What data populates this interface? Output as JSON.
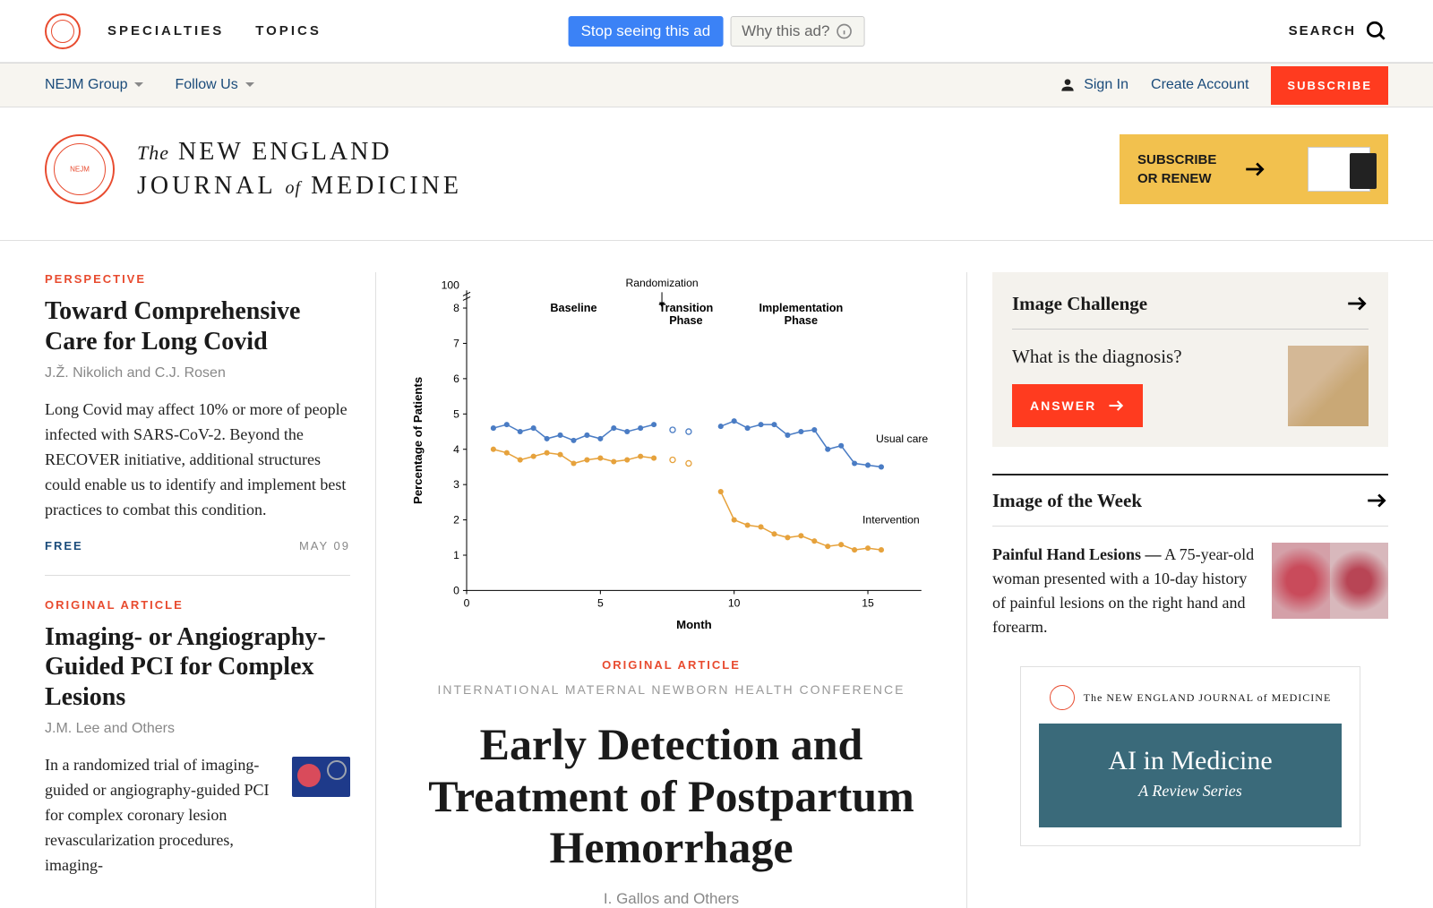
{
  "nav": {
    "specialties": "SPECIALTIES",
    "topics": "TOPICS",
    "search": "SEARCH",
    "stop_ad": "Stop seeing this ad",
    "why_ad": "Why this ad?"
  },
  "secbar": {
    "group": "NEJM Group",
    "follow": "Follow Us",
    "signin": "Sign In",
    "create": "Create Account",
    "subscribe": "SUBSCRIBE"
  },
  "masthead": {
    "the": "The",
    "l1": "NEW ENGLAND",
    "l2a": "JOURNAL",
    "of": "of",
    "l2b": "MEDICINE",
    "renew1": "SUBSCRIBE",
    "renew2": "OR RENEW"
  },
  "left": {
    "a1_kicker": "PERSPECTIVE",
    "a1_title": "Toward Comprehensive Care for Long Covid",
    "a1_auth": "J.Ž. Nikolich and C.J. Rosen",
    "a1_blurb": "Long Covid may affect 10% or more of people infected with SARS-CoV-2. Beyond the RECOVER initiative, additional structures could enable us to identify and implement best practices to combat this condition.",
    "free": "FREE",
    "date": "MAY 09",
    "a2_kicker": "ORIGINAL ARTICLE",
    "a2_title": "Imaging- or Angiography-Guided PCI for Complex Lesions",
    "a2_auth": "J.M. Lee and Others",
    "a2_blurb": "In a randomized trial of imaging-guided or angiography-guided PCI for complex coronary lesion revascularization procedures, imaging-"
  },
  "chart": {
    "type": "line",
    "xlabel": "Month",
    "ylabel": "Percentage of Patients",
    "xlim": [
      0,
      17
    ],
    "ylim": [
      0,
      8.5
    ],
    "xticks": [
      0,
      5,
      10,
      15
    ],
    "yticks": [
      0,
      1,
      2,
      3,
      4,
      5,
      6,
      7,
      8
    ],
    "ytop": 100,
    "phases": [
      {
        "label": "Baseline",
        "x": 4
      },
      {
        "label": "Transition\nPhase",
        "x": 8.2
      },
      {
        "label": "Implementation\nPhase",
        "x": 12.5
      }
    ],
    "rand_label": "Randomization",
    "rand_x": 7.3,
    "series": [
      {
        "name": "Usual care",
        "color": "#4a7cc4",
        "label_x": 15.3,
        "label_y": 4.2,
        "points": [
          [
            1,
            4.6
          ],
          [
            1.5,
            4.7
          ],
          [
            2,
            4.5
          ],
          [
            2.5,
            4.6
          ],
          [
            3,
            4.3
          ],
          [
            3.5,
            4.4
          ],
          [
            4,
            4.25
          ],
          [
            4.5,
            4.4
          ],
          [
            5,
            4.3
          ],
          [
            5.5,
            4.6
          ],
          [
            6,
            4.5
          ],
          [
            6.5,
            4.6
          ],
          [
            7,
            4.7
          ],
          [
            9.5,
            4.65
          ],
          [
            10,
            4.8
          ],
          [
            10.5,
            4.6
          ],
          [
            11,
            4.7
          ],
          [
            11.5,
            4.7
          ],
          [
            12,
            4.4
          ],
          [
            12.5,
            4.5
          ],
          [
            13,
            4.55
          ],
          [
            13.5,
            4.0
          ],
          [
            14,
            4.1
          ],
          [
            14.5,
            3.6
          ],
          [
            15,
            3.55
          ],
          [
            15.5,
            3.5
          ]
        ],
        "gap_pts": [
          [
            7.7,
            4.55
          ],
          [
            8.3,
            4.5
          ]
        ]
      },
      {
        "name": "Intervention",
        "color": "#e6a23c",
        "label_x": 14.8,
        "label_y": 1.9,
        "points": [
          [
            1,
            4.0
          ],
          [
            1.5,
            3.9
          ],
          [
            2,
            3.7
          ],
          [
            2.5,
            3.8
          ],
          [
            3,
            3.9
          ],
          [
            3.5,
            3.85
          ],
          [
            4,
            3.6
          ],
          [
            4.5,
            3.7
          ],
          [
            5,
            3.75
          ],
          [
            5.5,
            3.65
          ],
          [
            6,
            3.7
          ],
          [
            6.5,
            3.8
          ],
          [
            7,
            3.75
          ],
          [
            9.5,
            2.8
          ],
          [
            10,
            2.0
          ],
          [
            10.5,
            1.85
          ],
          [
            11,
            1.8
          ],
          [
            11.5,
            1.6
          ],
          [
            12,
            1.5
          ],
          [
            12.5,
            1.55
          ],
          [
            13,
            1.4
          ],
          [
            13.5,
            1.25
          ],
          [
            14,
            1.3
          ],
          [
            14.5,
            1.15
          ],
          [
            15,
            1.2
          ],
          [
            15.5,
            1.15
          ]
        ],
        "gap_pts": [
          [
            7.7,
            3.7
          ],
          [
            8.3,
            3.6
          ]
        ]
      }
    ]
  },
  "hero": {
    "kicker": "ORIGINAL ARTICLE",
    "conf": "INTERNATIONAL MATERNAL NEWBORN HEALTH CONFERENCE",
    "title": "Early Detection and Treatment of Postpartum Hemorrhage",
    "auth": "I. Gallos and Others"
  },
  "right": {
    "challenge": "Image Challenge",
    "diag": "What is the diagnosis?",
    "answer": "ANSWER",
    "iotw": "Image of the Week",
    "iotw_bold": "Painful Hand Lesions —",
    "iotw_txt": " A 75-year-old woman presented with a 10-day history of painful lesions on the right hand and forearm.",
    "ad_brand": "The NEW ENGLAND JOURNAL of MEDICINE",
    "ad_t1": "AI in Medicine",
    "ad_t2": "A Review Series"
  }
}
